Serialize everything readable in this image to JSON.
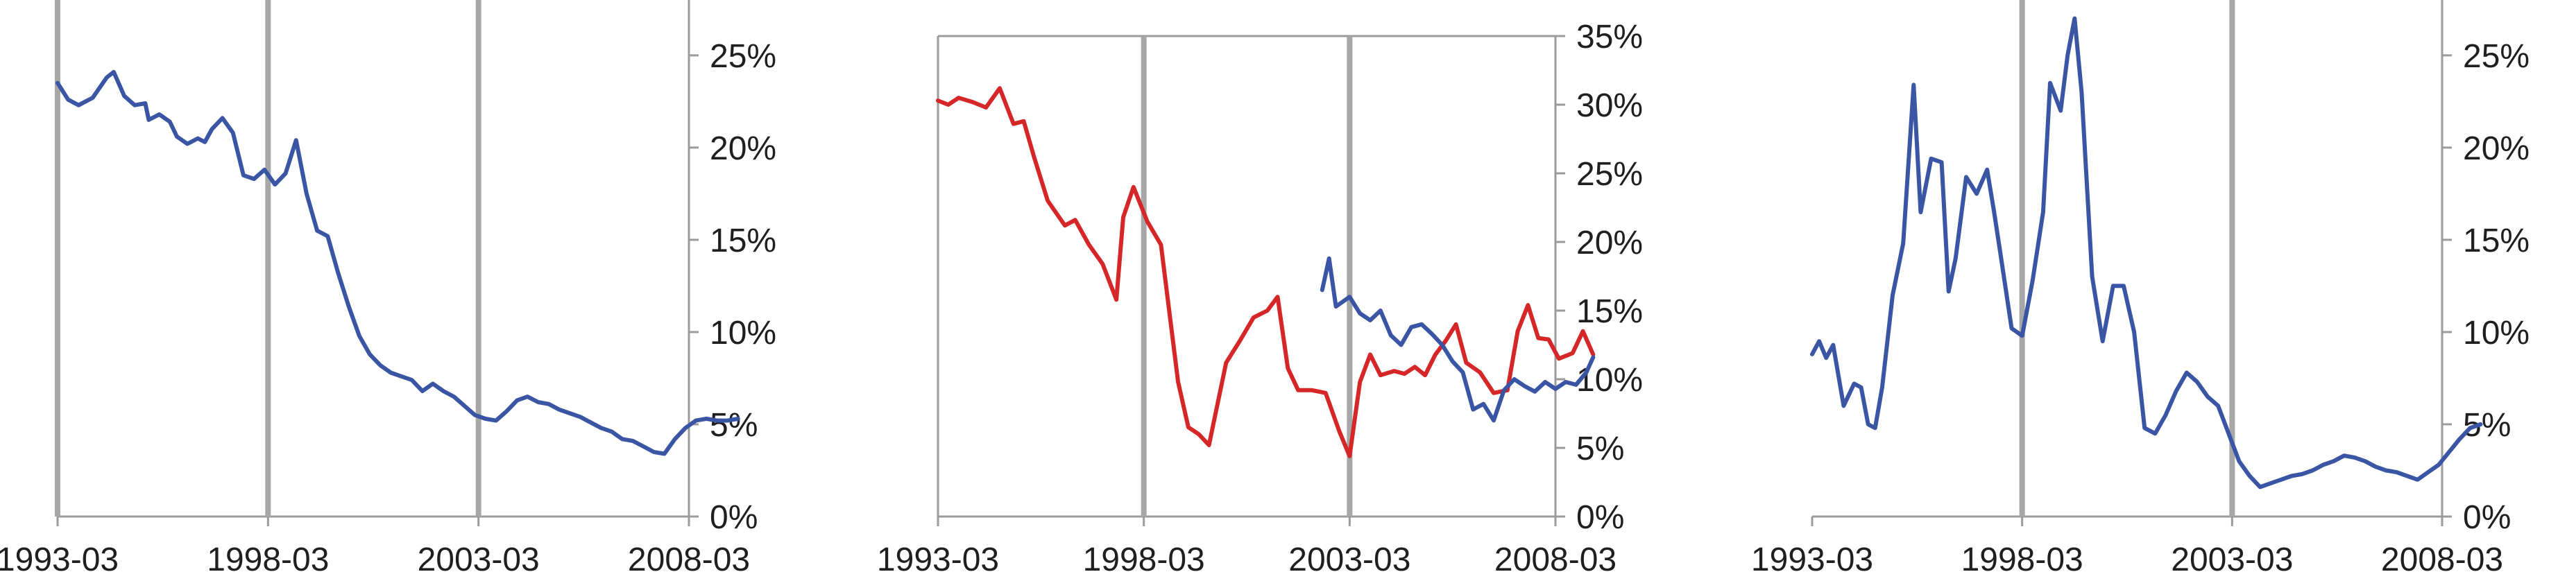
{
  "chart_data": [
    {
      "type": "line",
      "title": "",
      "xlabel": "",
      "ylabel": "",
      "x_tick_labels": [
        "1993-03",
        "1998-03",
        "2003-03",
        "2008-03"
      ],
      "y_tick_labels": [
        "0%",
        "5%",
        "10%",
        "15%",
        "20%",
        "25%"
      ],
      "ylim": [
        0,
        28
      ],
      "y_axis_side": "right",
      "vertical_lines_at": [
        "1993-03",
        "1998-03",
        "2003-03"
      ],
      "legend": "none",
      "series": [
        {
          "color": "#3b55a5",
          "points": [
            [
              "1993-03",
              23.5
            ],
            [
              "1993-06",
              22.6
            ],
            [
              "1993-09",
              22.3
            ],
            [
              "1994-01",
              22.7
            ],
            [
              "1994-05",
              23.8
            ],
            [
              "1994-07",
              24.1
            ],
            [
              "1994-10",
              22.8
            ],
            [
              "1995-01",
              22.3
            ],
            [
              "1995-04",
              22.4
            ],
            [
              "1995-05",
              21.5
            ],
            [
              "1995-08",
              21.8
            ],
            [
              "1995-11",
              21.4
            ],
            [
              "1996-01",
              20.6
            ],
            [
              "1996-04",
              20.2
            ],
            [
              "1996-07",
              20.5
            ],
            [
              "1996-09",
              20.3
            ],
            [
              "1996-11",
              21.0
            ],
            [
              "1997-02",
              21.6
            ],
            [
              "1997-05",
              20.8
            ],
            [
              "1997-08",
              18.5
            ],
            [
              "1997-11",
              18.3
            ],
            [
              "1998-02",
              18.8
            ],
            [
              "1998-05",
              18.0
            ],
            [
              "1998-08",
              18.6
            ],
            [
              "1998-11",
              20.4
            ],
            [
              "1999-02",
              17.5
            ],
            [
              "1999-05",
              15.5
            ],
            [
              "1999-08",
              15.2
            ],
            [
              "1999-11",
              13.2
            ],
            [
              "2000-02",
              11.4
            ],
            [
              "2000-05",
              9.8
            ],
            [
              "2000-08",
              8.8
            ],
            [
              "2000-11",
              8.2
            ],
            [
              "2001-02",
              7.8
            ],
            [
              "2001-05",
              7.6
            ],
            [
              "2001-08",
              7.4
            ],
            [
              "2001-11",
              6.8
            ],
            [
              "2002-02",
              7.2
            ],
            [
              "2002-05",
              6.8
            ],
            [
              "2002-08",
              6.5
            ],
            [
              "2002-11",
              6.0
            ],
            [
              "2003-02",
              5.5
            ],
            [
              "2003-05",
              5.3
            ],
            [
              "2003-08",
              5.2
            ],
            [
              "2003-11",
              5.7
            ],
            [
              "2004-02",
              6.3
            ],
            [
              "2004-05",
              6.5
            ],
            [
              "2004-08",
              6.2
            ],
            [
              "2004-11",
              6.1
            ],
            [
              "2005-02",
              5.8
            ],
            [
              "2005-05",
              5.6
            ],
            [
              "2005-08",
              5.4
            ],
            [
              "2005-11",
              5.1
            ],
            [
              "2006-02",
              4.8
            ],
            [
              "2006-05",
              4.6
            ],
            [
              "2006-08",
              4.2
            ],
            [
              "2006-11",
              4.1
            ],
            [
              "2007-02",
              3.8
            ],
            [
              "2007-05",
              3.5
            ],
            [
              "2007-08",
              3.4
            ],
            [
              "2007-11",
              4.2
            ],
            [
              "2008-02",
              4.8
            ],
            [
              "2008-05",
              5.2
            ],
            [
              "2008-08",
              5.3
            ],
            [
              "2008-11",
              5.2
            ],
            [
              "2009-02",
              5.2
            ],
            [
              "2009-05",
              5.3
            ]
          ]
        }
      ]
    },
    {
      "type": "line",
      "title": "",
      "xlabel": "",
      "ylabel": "",
      "x_tick_labels": [
        "1993-03",
        "1998-03",
        "2003-03",
        "2008-03"
      ],
      "y_tick_labels": [
        "0%",
        "5%",
        "10%",
        "15%",
        "20%",
        "25%",
        "30%",
        "35%"
      ],
      "ylim": [
        0,
        35
      ],
      "y_axis_side": "right",
      "vertical_lines_at": [
        "1998-03",
        "2003-03"
      ],
      "legend": "none",
      "series": [
        {
          "color": "#d62728",
          "points": [
            [
              "1993-03",
              30.3
            ],
            [
              "1993-06",
              30.0
            ],
            [
              "1993-09",
              30.5
            ],
            [
              "1994-01",
              30.2
            ],
            [
              "1994-05",
              29.8
            ],
            [
              "1994-09",
              31.2
            ],
            [
              "1995-01",
              28.6
            ],
            [
              "1995-04",
              28.8
            ],
            [
              "1995-07",
              26.2
            ],
            [
              "1995-11",
              23.0
            ],
            [
              "1996-04",
              21.2
            ],
            [
              "1996-07",
              21.6
            ],
            [
              "1996-11",
              19.8
            ],
            [
              "1997-03",
              18.4
            ],
            [
              "1997-07",
              15.8
            ],
            [
              "1997-09",
              21.8
            ],
            [
              "1997-12",
              24.0
            ],
            [
              "1998-04",
              21.5
            ],
            [
              "1998-08",
              19.8
            ],
            [
              "1999-01",
              9.8
            ],
            [
              "1999-04",
              6.5
            ],
            [
              "1999-07",
              6.0
            ],
            [
              "1999-10",
              5.2
            ],
            [
              "2000-03",
              11.2
            ],
            [
              "2000-07",
              12.8
            ],
            [
              "2000-11",
              14.5
            ],
            [
              "2001-03",
              15.0
            ],
            [
              "2001-06",
              16.0
            ],
            [
              "2001-09",
              10.8
            ],
            [
              "2001-12",
              9.2
            ],
            [
              "2002-04",
              9.2
            ],
            [
              "2002-08",
              9.0
            ],
            [
              "2002-12",
              6.2
            ],
            [
              "2003-03",
              4.4
            ],
            [
              "2003-06",
              9.8
            ],
            [
              "2003-09",
              11.8
            ],
            [
              "2003-12",
              10.3
            ],
            [
              "2004-04",
              10.6
            ],
            [
              "2004-07",
              10.4
            ],
            [
              "2004-10",
              10.9
            ],
            [
              "2005-01",
              10.3
            ],
            [
              "2005-04",
              11.8
            ],
            [
              "2005-07",
              12.8
            ],
            [
              "2005-10",
              14.0
            ],
            [
              "2006-01",
              11.2
            ],
            [
              "2006-05",
              10.5
            ],
            [
              "2006-09",
              9.0
            ],
            [
              "2007-01",
              9.2
            ],
            [
              "2007-04",
              13.5
            ],
            [
              "2007-07",
              15.4
            ],
            [
              "2007-10",
              13.0
            ],
            [
              "2008-01",
              12.9
            ],
            [
              "2008-04",
              11.5
            ],
            [
              "2008-08",
              11.9
            ],
            [
              "2008-11",
              13.5
            ],
            [
              "2009-02",
              11.8
            ]
          ]
        },
        {
          "color": "#3b55a5",
          "points": [
            [
              "2002-07",
              16.5
            ],
            [
              "2002-09",
              18.8
            ],
            [
              "2002-11",
              15.3
            ],
            [
              "2003-03",
              16.0
            ],
            [
              "2003-06",
              14.8
            ],
            [
              "2003-09",
              14.3
            ],
            [
              "2003-12",
              15.0
            ],
            [
              "2004-03",
              13.2
            ],
            [
              "2004-06",
              12.5
            ],
            [
              "2004-09",
              13.8
            ],
            [
              "2004-12",
              14.0
            ],
            [
              "2005-03",
              13.3
            ],
            [
              "2005-06",
              12.5
            ],
            [
              "2005-09",
              11.3
            ],
            [
              "2005-12",
              10.5
            ],
            [
              "2006-03",
              7.8
            ],
            [
              "2006-06",
              8.2
            ],
            [
              "2006-09",
              7.0
            ],
            [
              "2006-12",
              9.2
            ],
            [
              "2007-03",
              10.0
            ],
            [
              "2007-06",
              9.5
            ],
            [
              "2007-09",
              9.1
            ],
            [
              "2007-12",
              9.8
            ],
            [
              "2008-03",
              9.3
            ],
            [
              "2008-06",
              9.8
            ],
            [
              "2008-09",
              9.6
            ],
            [
              "2008-12",
              10.5
            ],
            [
              "2009-02",
              11.6
            ]
          ]
        }
      ]
    },
    {
      "type": "line",
      "title": "",
      "xlabel": "",
      "ylabel": "",
      "x_tick_labels": [
        "1993-03",
        "1998-03",
        "2003-03",
        "2008-03"
      ],
      "y_tick_labels": [
        "0%",
        "5%",
        "10%",
        "15%",
        "20%",
        "25%"
      ],
      "ylim": [
        0,
        28
      ],
      "y_axis_side": "right",
      "vertical_lines_at": [
        "1998-03",
        "2003-03"
      ],
      "legend": "none",
      "series": [
        {
          "color": "#3b55a5",
          "points": [
            [
              "1993-03",
              8.8
            ],
            [
              "1993-05",
              9.5
            ],
            [
              "1993-07",
              8.6
            ],
            [
              "1993-09",
              9.3
            ],
            [
              "1993-12",
              6.0
            ],
            [
              "1994-03",
              7.2
            ],
            [
              "1994-05",
              7.0
            ],
            [
              "1994-07",
              5.0
            ],
            [
              "1994-09",
              4.8
            ],
            [
              "1994-11",
              7.0
            ],
            [
              "1995-02",
              12.0
            ],
            [
              "1995-05",
              14.8
            ],
            [
              "1995-08",
              23.4
            ],
            [
              "1995-10",
              16.5
            ],
            [
              "1996-01",
              19.4
            ],
            [
              "1996-04",
              19.2
            ],
            [
              "1996-06",
              12.2
            ],
            [
              "1996-08",
              14.0
            ],
            [
              "1996-11",
              18.4
            ],
            [
              "1997-02",
              17.5
            ],
            [
              "1997-05",
              18.8
            ],
            [
              "1997-07",
              16.5
            ],
            [
              "1997-09",
              14.0
            ],
            [
              "1997-12",
              10.2
            ],
            [
              "1998-03",
              9.8
            ],
            [
              "1998-06",
              12.8
            ],
            [
              "1998-09",
              16.5
            ],
            [
              "1998-11",
              23.5
            ],
            [
              "1999-02",
              22.0
            ],
            [
              "1999-04",
              25.0
            ],
            [
              "1999-06",
              27.0
            ],
            [
              "1999-08",
              23.0
            ],
            [
              "1999-11",
              13.0
            ],
            [
              "2000-02",
              9.5
            ],
            [
              "2000-05",
              12.5
            ],
            [
              "2000-08",
              12.5
            ],
            [
              "2000-11",
              10.0
            ],
            [
              "2001-02",
              4.8
            ],
            [
              "2001-05",
              4.5
            ],
            [
              "2001-08",
              5.5
            ],
            [
              "2001-11",
              6.8
            ],
            [
              "2002-02",
              7.8
            ],
            [
              "2002-05",
              7.3
            ],
            [
              "2002-08",
              6.5
            ],
            [
              "2002-11",
              6.0
            ],
            [
              "2003-02",
              4.5
            ],
            [
              "2003-05",
              3.0
            ],
            [
              "2003-08",
              2.2
            ],
            [
              "2003-11",
              1.6
            ],
            [
              "2004-02",
              1.8
            ],
            [
              "2004-05",
              2.0
            ],
            [
              "2004-08",
              2.2
            ],
            [
              "2004-11",
              2.3
            ],
            [
              "2005-02",
              2.5
            ],
            [
              "2005-05",
              2.8
            ],
            [
              "2005-08",
              3.0
            ],
            [
              "2005-11",
              3.3
            ],
            [
              "2006-02",
              3.2
            ],
            [
              "2006-05",
              3.0
            ],
            [
              "2006-08",
              2.7
            ],
            [
              "2006-11",
              2.5
            ],
            [
              "2007-02",
              2.4
            ],
            [
              "2007-05",
              2.2
            ],
            [
              "2007-08",
              2.0
            ],
            [
              "2007-11",
              2.4
            ],
            [
              "2008-02",
              2.8
            ],
            [
              "2008-05",
              3.5
            ],
            [
              "2008-08",
              4.2
            ],
            [
              "2008-11",
              4.8
            ],
            [
              "2009-02",
              5.0
            ]
          ]
        }
      ]
    }
  ]
}
